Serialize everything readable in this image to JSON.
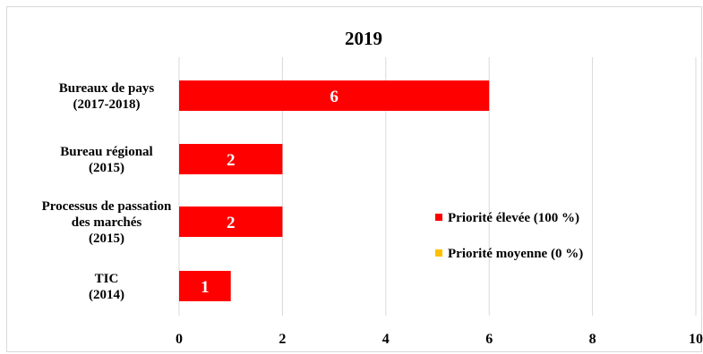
{
  "chart_data": {
    "type": "bar",
    "orientation": "horizontal",
    "title": "2019",
    "categories": [
      [
        "Bureaux de pays",
        "(2017-2018)"
      ],
      [
        "Bureau régional",
        "(2015)"
      ],
      [
        "Processus de passation",
        "des marchés",
        "(2015)"
      ],
      [
        "TIC",
        "(2014)"
      ]
    ],
    "series": [
      {
        "name": "Priorité élevée (100 %)",
        "color": "#ff0000",
        "values": [
          6,
          2,
          2,
          1
        ]
      },
      {
        "name": "Priorité moyenne (0 %)",
        "color": "#ffc000",
        "values": [
          0,
          0,
          0,
          0
        ]
      }
    ],
    "data_labels": [
      "6",
      "2",
      "2",
      "1"
    ],
    "xlim": [
      0,
      10
    ],
    "xticks": [
      "0",
      "2",
      "4",
      "6",
      "8",
      "10"
    ],
    "grid": true,
    "legend_position": "right"
  }
}
